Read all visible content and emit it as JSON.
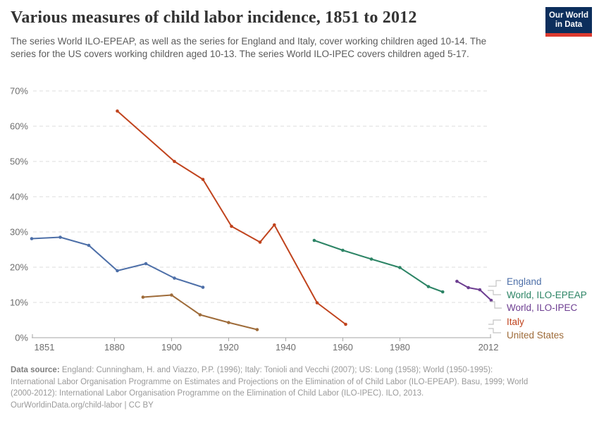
{
  "logo": {
    "line1": "Our World",
    "line2": "in Data",
    "bg_color": "#0c2e5c",
    "bar_color": "#dc3a2f"
  },
  "chart_data": {
    "type": "line",
    "title": "Various measures of child labor incidence, 1851 to 2012",
    "subtitle": "The series World ILO-EPEAP, as well as the series for England and Italy, cover working children aged 10-14. The series for the US covers working children aged 10-13. The series World ILO-IPEC covers children aged 5-17.",
    "xlabel": "",
    "ylabel": "",
    "xlim": [
      1851,
      2012
    ],
    "ylim": [
      0,
      70
    ],
    "x_ticks": [
      1851,
      1880,
      1900,
      1920,
      1940,
      1960,
      1980,
      2012
    ],
    "y_ticks": [
      0,
      10,
      20,
      30,
      40,
      50,
      60,
      70
    ],
    "y_tick_suffix": "%",
    "grid": "horizontal-dashed",
    "legend_position": "right",
    "markers": true,
    "series": [
      {
        "name": "England",
        "color": "#4d6fa8",
        "points": [
          [
            1851,
            28.1
          ],
          [
            1861,
            28.5
          ],
          [
            1871,
            26.2
          ],
          [
            1881,
            19.0
          ],
          [
            1891,
            21.0
          ],
          [
            1901,
            16.9
          ],
          [
            1911,
            14.3
          ]
        ]
      },
      {
        "name": "World, ILO-EPEAP",
        "color": "#2c8465",
        "points": [
          [
            1950,
            27.6
          ],
          [
            1960,
            24.8
          ],
          [
            1970,
            22.3
          ],
          [
            1980,
            19.9
          ],
          [
            1990,
            14.5
          ],
          [
            1995,
            13.0
          ]
        ]
      },
      {
        "name": "World, ILO-IPEC",
        "color": "#6d3e91",
        "points": [
          [
            2000,
            16.0
          ],
          [
            2004,
            14.2
          ],
          [
            2008,
            13.6
          ],
          [
            2012,
            10.6
          ]
        ]
      },
      {
        "name": "Italy",
        "color": "#c0431d",
        "points": [
          [
            1881,
            64.3
          ],
          [
            1901,
            50.0
          ],
          [
            1911,
            44.9
          ],
          [
            1921,
            31.6
          ],
          [
            1931,
            27.1
          ],
          [
            1936,
            32.0
          ],
          [
            1951,
            9.9
          ],
          [
            1961,
            3.8
          ]
        ]
      },
      {
        "name": "United States",
        "color": "#9e6b39",
        "points": [
          [
            1890,
            11.5
          ],
          [
            1900,
            12.1
          ],
          [
            1910,
            6.5
          ],
          [
            1920,
            4.3
          ],
          [
            1930,
            2.3
          ]
        ]
      }
    ]
  },
  "footer": {
    "source_label": "Data source:",
    "source_text": "England: Cunningham, H. and Viazzo, P.P. (1996); Italy: Tonioli and Vecchi (2007); US: Long (1958); World (1950-1995): International Labor Organisation Programme on Estimates and Projections on the Elimination of of Child Labor (ILO-EPEAP). Basu, 1999; World (2000-2012): International Labor Organisation Programme on the Elimination of Child Labor (ILO-IPEC). ILO, 2013.",
    "license": "OurWorldinData.org/child-labor | CC BY"
  }
}
